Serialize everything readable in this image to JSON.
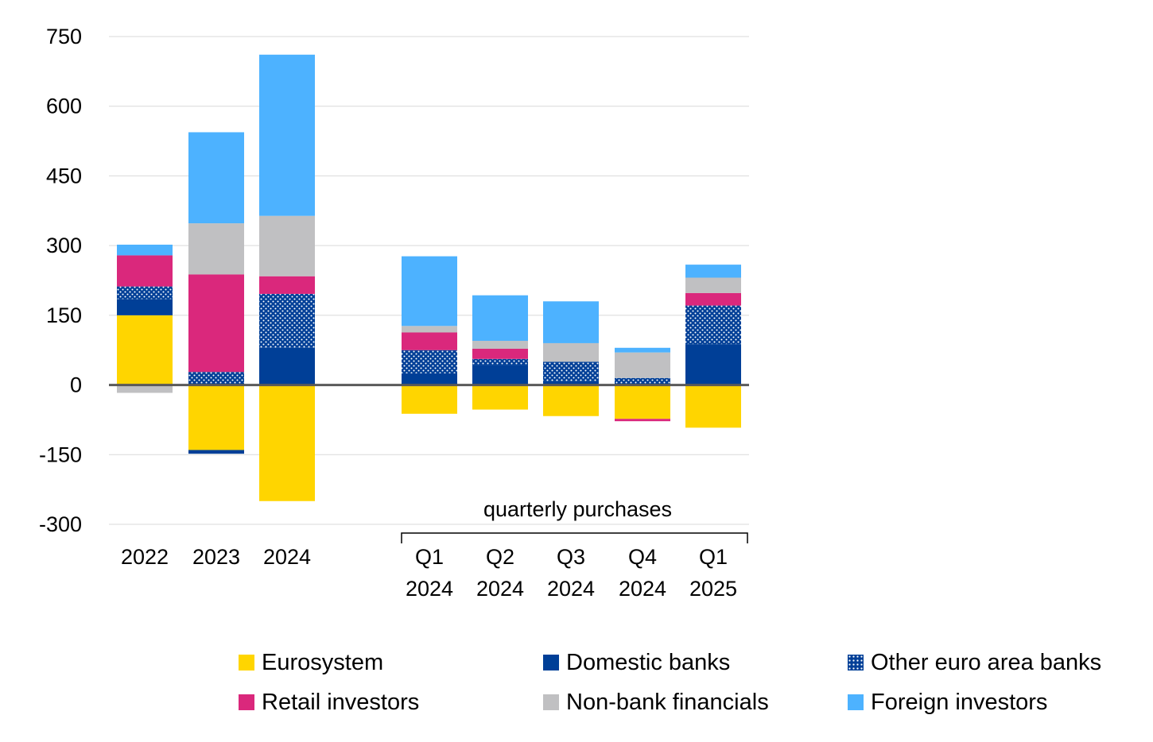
{
  "chart_data": {
    "type": "bar",
    "stacked": true,
    "title": "",
    "xlabel": "",
    "ylabel": "",
    "ylim": [
      -300,
      750
    ],
    "yticks": [
      750,
      600,
      450,
      300,
      150,
      0,
      -150,
      -300
    ],
    "grid": true,
    "categories": [
      {
        "id": "2022",
        "lines": [
          "2022"
        ]
      },
      {
        "id": "2023",
        "lines": [
          "2023"
        ]
      },
      {
        "id": "2024",
        "lines": [
          "2024"
        ]
      },
      {
        "id": "Q1 2024",
        "lines": [
          "Q1",
          "2024"
        ]
      },
      {
        "id": "Q2 2024",
        "lines": [
          "Q2",
          "2024"
        ]
      },
      {
        "id": "Q3 2024",
        "lines": [
          "Q3",
          "2024"
        ]
      },
      {
        "id": "Q4 2024",
        "lines": [
          "Q4",
          "2024"
        ]
      },
      {
        "id": "Q1 2025",
        "lines": [
          "Q1",
          "2025"
        ]
      }
    ],
    "group_annotation": {
      "text": "quarterly purchases",
      "from_category": 3,
      "to_category": 7
    },
    "series": [
      {
        "name": "Eurosystem",
        "color": "#FFD500",
        "pattern": "solid",
        "values": [
          150,
          -140,
          -250,
          -62,
          -53,
          -67,
          -73,
          -92
        ]
      },
      {
        "name": "Domestic banks",
        "color": "#003F97",
        "pattern": "solid",
        "values": [
          35,
          -8,
          80,
          25,
          43,
          8,
          0,
          88
        ]
      },
      {
        "name": "Other euro area banks",
        "color": "#003F97",
        "pattern": "dotted",
        "values": [
          27,
          28,
          116,
          50,
          13,
          42,
          15,
          83
        ]
      },
      {
        "name": "Retail investors",
        "color": "#DA287C",
        "pattern": "solid",
        "values": [
          67,
          210,
          38,
          38,
          22,
          0,
          -5,
          27
        ]
      },
      {
        "name": "Non-bank financials",
        "color": "#C0C0C2",
        "pattern": "solid",
        "values": [
          -17,
          110,
          130,
          14,
          17,
          40,
          55,
          33
        ]
      },
      {
        "name": "Foreign investors",
        "color": "#4DB2FF",
        "pattern": "solid",
        "values": [
          23,
          196,
          347,
          150,
          98,
          90,
          10,
          28
        ]
      }
    ],
    "legend": {
      "placement": "bottom",
      "columns": 3
    }
  }
}
